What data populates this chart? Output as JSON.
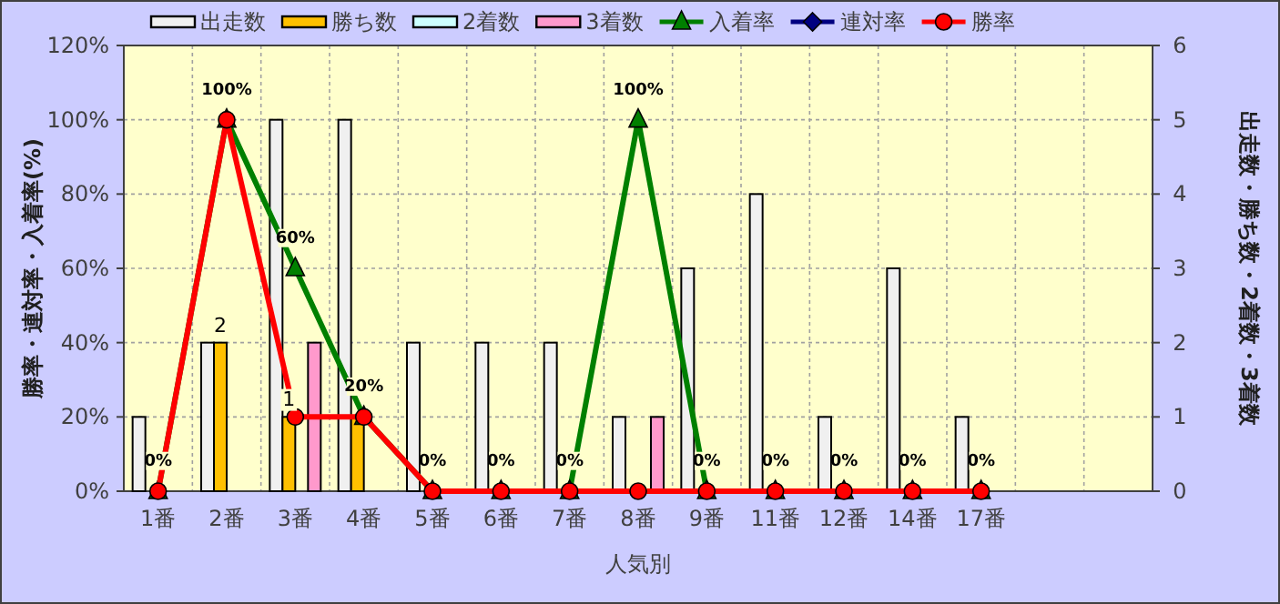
{
  "chart_data": {
    "type": "bar",
    "xlabel": "人気別",
    "ylabel": "勝率・連対率・入着率(%)",
    "y2label": "出走数・勝ち数・2着数・3着数",
    "categories": [
      "1番",
      "2番",
      "3番",
      "4番",
      "5番",
      "6番",
      "7番",
      "8番",
      "9番",
      "11番",
      "12番",
      "14番",
      "17番",
      null,
      null
    ],
    "series": [
      {
        "name": "出走数",
        "axis": "y2",
        "color": "#f0f0f0",
        "values": [
          1,
          2,
          5,
          5,
          2,
          2,
          2,
          1,
          3,
          4,
          1,
          3,
          1,
          null,
          null
        ]
      },
      {
        "name": "勝ち数",
        "axis": "y2",
        "color": "#ffc000",
        "values": [
          0,
          2,
          1,
          1,
          0,
          0,
          0,
          0,
          0,
          0,
          0,
          0,
          0,
          null,
          null
        ],
        "value_labels": [
          null,
          "2",
          "1",
          null,
          null,
          null,
          null,
          null,
          null,
          null,
          null,
          null,
          null,
          null,
          null
        ]
      },
      {
        "name": "2着数",
        "axis": "y2",
        "color": "#ccffff",
        "values": [
          0,
          0,
          0,
          0,
          0,
          0,
          0,
          0,
          0,
          0,
          0,
          0,
          0,
          null,
          null
        ]
      },
      {
        "name": "3着数",
        "axis": "y2",
        "color": "#ff99cc",
        "values": [
          0,
          0,
          2,
          0,
          0,
          0,
          0,
          1,
          0,
          0,
          0,
          0,
          0,
          null,
          null
        ]
      },
      {
        "name": "入着率",
        "type": "line",
        "marker": "triangle",
        "color": "#008000",
        "values": [
          0,
          100,
          60,
          20,
          0,
          0,
          0,
          100,
          0,
          0,
          0,
          0,
          0,
          null,
          null
        ],
        "value_labels": [
          "0%",
          "100%",
          "60%",
          "20%",
          "0%",
          "0%",
          "0%",
          "100%",
          "0%",
          "0%",
          "0%",
          "0%",
          "0%",
          null,
          null
        ]
      },
      {
        "name": "連対率",
        "type": "line",
        "marker": "diamond",
        "color": "#000080",
        "values": [
          null,
          null,
          null,
          null,
          null,
          null,
          null,
          null,
          null,
          null,
          null,
          null,
          null,
          null,
          null
        ]
      },
      {
        "name": "勝率",
        "type": "line",
        "marker": "circle",
        "color": "#ff0000",
        "values": [
          0,
          100,
          20,
          20,
          0,
          0,
          0,
          0,
          0,
          0,
          0,
          0,
          0,
          null,
          null
        ]
      }
    ],
    "ylim": [
      0,
      120
    ],
    "yticks": [
      {
        "value": 0,
        "label": "0%"
      },
      {
        "value": 20,
        "label": "20%"
      },
      {
        "value": 40,
        "label": "40%"
      },
      {
        "value": 60,
        "label": "60%"
      },
      {
        "value": 80,
        "label": "80%"
      },
      {
        "value": 100,
        "label": "100%"
      },
      {
        "value": 120,
        "label": "120%"
      }
    ],
    "y2lim": [
      0,
      6
    ],
    "y2ticks": [
      0,
      1,
      2,
      3,
      4,
      5,
      6
    ],
    "grid": true,
    "legend": "top"
  }
}
